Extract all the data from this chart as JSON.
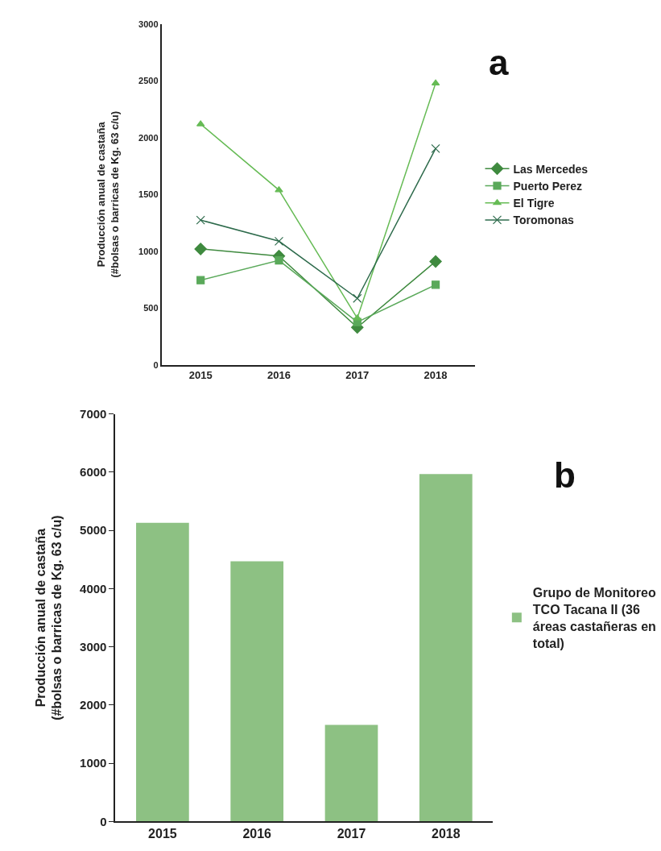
{
  "chart_data": [
    {
      "type": "line",
      "ylabel": "Producción anual de castaña\n(#bolsas o barricas de Kg. 63 c/u)",
      "categories": [
        "2015",
        "2016",
        "2017",
        "2018"
      ],
      "ylim": [
        0,
        3000
      ],
      "yticks": [
        0,
        500,
        1000,
        1500,
        2000,
        2500,
        3000
      ],
      "legend": "right",
      "annotations": [
        "a"
      ],
      "series": [
        {
          "name": "Las Mercedes",
          "color": "#3f8a3f",
          "marker": "diamond",
          "values": [
            1020,
            958,
            329,
            910
          ]
        },
        {
          "name": "Puerto Perez",
          "color": "#5aa95a",
          "marker": "square",
          "values": [
            745,
            919,
            376,
            705
          ]
        },
        {
          "name": "El Tigre",
          "color": "#66bb55",
          "marker": "triangle",
          "values": [
            2118,
            1538,
            411,
            2478
          ]
        },
        {
          "name": "Toromonas",
          "color": "#2e6b4c",
          "marker": "cross",
          "values": [
            1274,
            1088,
            585,
            1903
          ]
        }
      ]
    },
    {
      "type": "bar",
      "ylabel": "Producción anual de castaña\n(#bolsas o barricas de Kg. 63 c/u)",
      "categories": [
        "2015",
        "2016",
        "2017",
        "2018"
      ],
      "ylim": [
        0,
        7000
      ],
      "yticks": [
        0,
        1000,
        2000,
        3000,
        4000,
        5000,
        6000,
        7000
      ],
      "legend": "right",
      "annotations": [
        "b"
      ],
      "series": [
        {
          "name": "Grupo de Monitoreo TCO Tacana II (36 áreas castañeras en total)",
          "color": "#8dc183",
          "values": [
            5130,
            4470,
            1660,
            5970
          ]
        }
      ]
    }
  ]
}
